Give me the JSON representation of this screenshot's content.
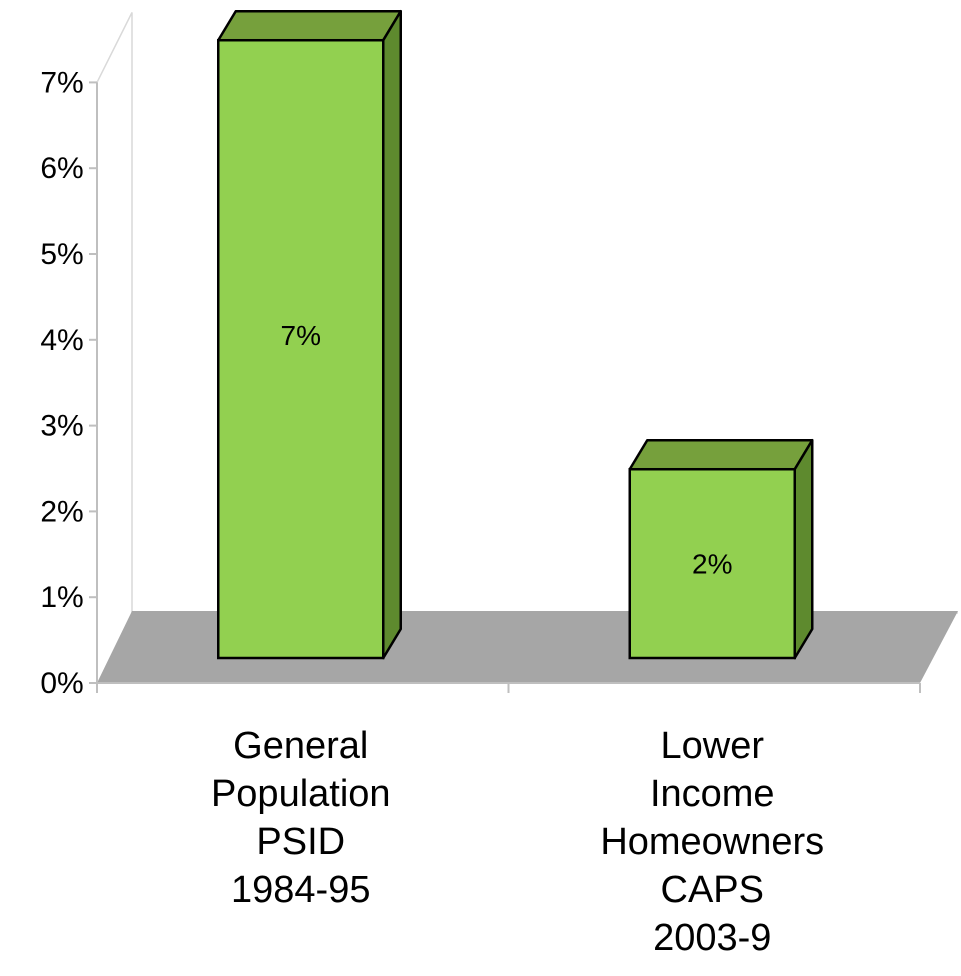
{
  "chart_data": {
    "type": "bar",
    "three_d": true,
    "categories": [
      [
        "General",
        "Population",
        "PSID",
        "1984-95"
      ],
      [
        "Lower",
        "Income",
        "Homeowners",
        "CAPS",
        "2003-9"
      ]
    ],
    "values": [
      0.072,
      0.022
    ],
    "data_labels": [
      "7%",
      "2%"
    ],
    "y_ticks": [
      "0%",
      "1%",
      "2%",
      "3%",
      "4%",
      "5%",
      "6%",
      "7%"
    ],
    "ylim": [
      0,
      0.07
    ],
    "legend": "none",
    "grid": false,
    "colors": {
      "bar_front": "#92D050",
      "bar_top": "#76A03C",
      "bar_side": "#5E8A2E",
      "floor": "#A6A6A6",
      "axis": "#BFBFBF"
    }
  }
}
